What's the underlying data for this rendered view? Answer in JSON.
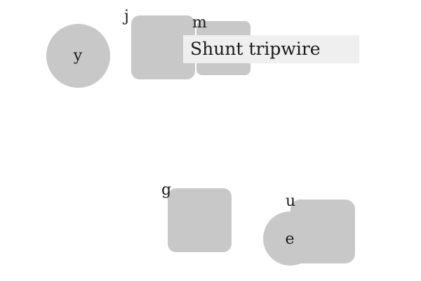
{
  "labels": {
    "y": "y",
    "j": "j",
    "m": "m",
    "g": "g",
    "u": "u",
    "e": "e"
  },
  "tooltip": {
    "text": "Shunt tripwire"
  },
  "colors": {
    "shape_fill": "#c8c8c8",
    "tooltip_bg": "#efefef",
    "text": "#1a1a1a"
  }
}
